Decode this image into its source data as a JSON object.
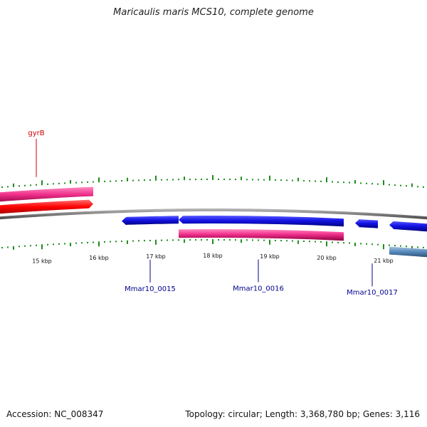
{
  "title": "Maricaulis maris MCS10, complete genome",
  "footer": {
    "accession_label": "Accession: NC_008347",
    "summary": "Topology: circular; Length: 3,368,780 bp; Genes: 3,116"
  },
  "colors": {
    "tick": "#1e8c1e",
    "backbone": "#808080",
    "blue_gene": "#1414e6",
    "pink_gene": "#f0308c",
    "red_gene": "#ff0000",
    "steel_gene": "#5a8cbe",
    "red_label": "#cc0000",
    "blue_label": "#00008b"
  },
  "ticks": [
    {
      "kbp": 15,
      "label": "15 kbp"
    },
    {
      "kbp": 16,
      "label": "16 kbp"
    },
    {
      "kbp": 17,
      "label": "17 kbp"
    },
    {
      "kbp": 18,
      "label": "18 kbp"
    },
    {
      "kbp": 19,
      "label": "19 kbp"
    },
    {
      "kbp": 20,
      "label": "20 kbp"
    },
    {
      "kbp": 21,
      "label": "21 kbp"
    }
  ],
  "genes": [
    {
      "start_kbp": 13.8,
      "end_kbp": 15.9,
      "track": "pink_outer",
      "color_key": "pink_gene"
    },
    {
      "start_kbp": 13.8,
      "end_kbp": 15.9,
      "track": "red_outer",
      "color_key": "red_gene",
      "direction": "forward"
    },
    {
      "start_kbp": 16.4,
      "end_kbp": 17.4,
      "track": "blue_inner",
      "color_key": "blue_gene",
      "direction": "reverse"
    },
    {
      "start_kbp": 17.4,
      "end_kbp": 20.3,
      "track": "blue_inner",
      "color_key": "blue_gene",
      "direction": "reverse"
    },
    {
      "start_kbp": 17.4,
      "end_kbp": 20.3,
      "track": "pink_inner",
      "color_key": "pink_gene"
    },
    {
      "start_kbp": 20.5,
      "end_kbp": 20.9,
      "track": "blue_inner",
      "color_key": "blue_gene",
      "direction": "reverse"
    },
    {
      "start_kbp": 21.1,
      "end_kbp": 21.8,
      "track": "blue_inner",
      "color_key": "blue_gene",
      "direction": "reverse"
    },
    {
      "start_kbp": 21.1,
      "end_kbp": 21.8,
      "track": "steel_inner",
      "color_key": "steel_gene"
    }
  ],
  "gene_labels": [
    {
      "name": "gyrB",
      "kbp": 14.9,
      "side": "outer",
      "color_key": "red_label"
    },
    {
      "name": "Mmar10_0015",
      "kbp": 16.9,
      "side": "inner",
      "color_key": "blue_label"
    },
    {
      "name": "Mmar10_0016",
      "kbp": 18.8,
      "side": "inner",
      "color_key": "blue_label"
    },
    {
      "name": "Mmar10_0017",
      "kbp": 20.8,
      "side": "inner",
      "color_key": "blue_label"
    }
  ]
}
